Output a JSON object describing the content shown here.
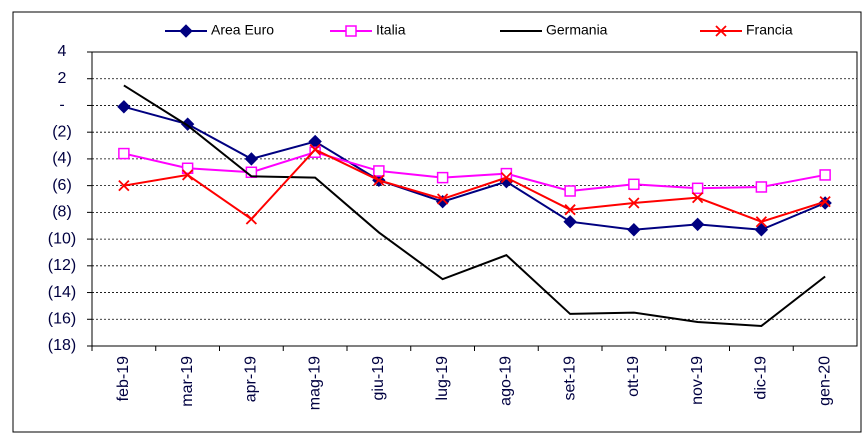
{
  "chart_data": {
    "type": "line",
    "categories": [
      "feb-19",
      "mar-19",
      "apr-19",
      "mag-19",
      "giu-19",
      "lug-19",
      "ago-19",
      "set-19",
      "ott-19",
      "nov-19",
      "dic-19",
      "gen-20"
    ],
    "series": [
      {
        "name": "Area Euro",
        "color": "#000080",
        "marker": "diamond",
        "values": [
          -0.1,
          -1.4,
          -4.0,
          -2.7,
          -5.6,
          -7.2,
          -5.7,
          -8.7,
          -9.3,
          -8.9,
          -9.3,
          -7.3
        ]
      },
      {
        "name": "Italia",
        "color": "#ff00ff",
        "marker": "square",
        "values": [
          -3.6,
          -4.7,
          -5.0,
          -3.5,
          -4.9,
          -5.4,
          -5.1,
          -6.4,
          -5.9,
          -6.2,
          -6.1,
          -5.2
        ]
      },
      {
        "name": "Germania",
        "color": "#000000",
        "marker": "none",
        "values": [
          1.5,
          -1.5,
          -5.3,
          -5.4,
          -9.5,
          -13.0,
          -11.2,
          -15.6,
          -15.5,
          -16.2,
          -16.5,
          -12.8
        ]
      },
      {
        "name": "Francia",
        "color": "#ff0000",
        "marker": "x",
        "values": [
          -6.0,
          -5.2,
          -8.5,
          -3.3,
          -5.6,
          -7.0,
          -5.4,
          -7.8,
          -7.3,
          -6.9,
          -8.7,
          -7.2
        ]
      }
    ],
    "ylim": [
      -18,
      4
    ],
    "yticks": [
      {
        "value": -18,
        "label": "(18)"
      },
      {
        "value": -16,
        "label": "(16)"
      },
      {
        "value": -14,
        "label": "(14)"
      },
      {
        "value": -12,
        "label": "(12)"
      },
      {
        "value": -10,
        "label": "(10)"
      },
      {
        "value": -8,
        "label": "(8)"
      },
      {
        "value": -6,
        "label": "(6)"
      },
      {
        "value": -4,
        "label": "(4)"
      },
      {
        "value": -2,
        "label": "(2)"
      },
      {
        "value": 0,
        "label": "-"
      },
      2,
      4
    ],
    "grid": true,
    "legend": "top"
  }
}
